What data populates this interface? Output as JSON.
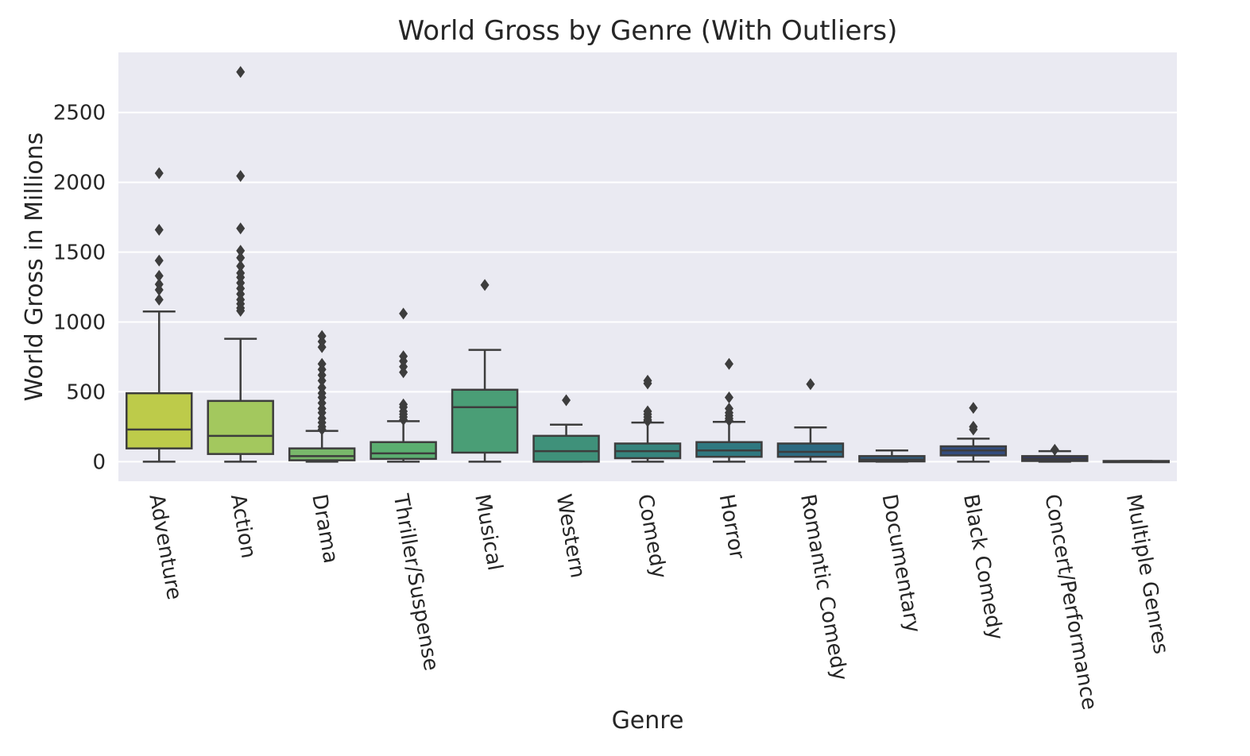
{
  "chart_data": {
    "type": "boxplot",
    "title": "World Gross by Genre (With Outliers)",
    "xlabel": "Genre",
    "ylabel": "World Gross in Millions",
    "ylim": [
      -140,
      2930
    ],
    "yticks": [
      0,
      500,
      1000,
      1500,
      2000,
      2500
    ],
    "grid": true,
    "legend": "none",
    "plot_background": "#eaeaf2",
    "box_edge_color": "#3d3d3d",
    "categories": [
      "Adventure",
      "Action",
      "Drama",
      "Thriller/Suspense",
      "Musical",
      "Western",
      "Comedy",
      "Horror",
      "Romantic Comedy",
      "Documentary",
      "Black Comedy",
      "Concert/Performance",
      "Multiple Genres"
    ],
    "boxes": [
      {
        "category": "Adventure",
        "color": "#bdcb4a",
        "whisker_low": 0,
        "q1": 95,
        "median": 230,
        "q3": 490,
        "whisker_high": 1075,
        "outliers": [
          1160,
          1230,
          1270,
          1330,
          1440,
          1660,
          2065
        ]
      },
      {
        "category": "Action",
        "color": "#a3c85e",
        "whisker_low": 0,
        "q1": 55,
        "median": 185,
        "q3": 435,
        "whisker_high": 880,
        "outliers": [
          1080,
          1100,
          1130,
          1160,
          1200,
          1240,
          1280,
          1320,
          1350,
          1400,
          1460,
          1510,
          1670,
          2045,
          2790
        ]
      },
      {
        "category": "Drama",
        "color": "#79b86b",
        "whisker_low": 0,
        "q1": 10,
        "median": 40,
        "q3": 95,
        "whisker_high": 220,
        "outliers": [
          230,
          250,
          280,
          310,
          350,
          380,
          420,
          460,
          490,
          530,
          580,
          620,
          660,
          700,
          820,
          860,
          900
        ]
      },
      {
        "category": "Thriller/Suspense",
        "color": "#5bae70",
        "whisker_low": 0,
        "q1": 20,
        "median": 60,
        "q3": 140,
        "whisker_high": 290,
        "outliers": [
          300,
          320,
          340,
          360,
          390,
          410,
          640,
          680,
          720,
          755,
          1060
        ]
      },
      {
        "category": "Musical",
        "color": "#4a9e76",
        "whisker_low": 0,
        "q1": 65,
        "median": 390,
        "q3": 515,
        "whisker_high": 800,
        "outliers": [
          1265
        ]
      },
      {
        "category": "Western",
        "color": "#3f917a",
        "whisker_low": 0,
        "q1": 0,
        "median": 75,
        "q3": 185,
        "whisker_high": 265,
        "outliers": [
          440
        ]
      },
      {
        "category": "Comedy",
        "color": "#36847d",
        "whisker_low": 0,
        "q1": 25,
        "median": 75,
        "q3": 130,
        "whisker_high": 280,
        "outliers": [
          290,
          300,
          320,
          340,
          360,
          560,
          580
        ]
      },
      {
        "category": "Horror",
        "color": "#2f7880",
        "whisker_low": 0,
        "q1": 35,
        "median": 80,
        "q3": 140,
        "whisker_high": 285,
        "outliers": [
          295,
          310,
          330,
          350,
          380,
          460,
          700
        ]
      },
      {
        "category": "Romantic Comedy",
        "color": "#2d6a81",
        "whisker_low": 0,
        "q1": 35,
        "median": 70,
        "q3": 130,
        "whisker_high": 245,
        "outliers": [
          555
        ]
      },
      {
        "category": "Documentary",
        "color": "#2f5b81",
        "whisker_low": 0,
        "q1": 2,
        "median": 15,
        "q3": 40,
        "whisker_high": 80,
        "outliers": []
      },
      {
        "category": "Black Comedy",
        "color": "#334c7e",
        "whisker_low": 0,
        "q1": 45,
        "median": 80,
        "q3": 110,
        "whisker_high": 165,
        "outliers": [
          230,
          250,
          385
        ]
      },
      {
        "category": "Concert/Performance",
        "color": "#343c70",
        "whisker_low": 0,
        "q1": 5,
        "median": 20,
        "q3": 40,
        "whisker_high": 75,
        "outliers": [
          85
        ]
      },
      {
        "category": "Multiple Genres",
        "color": "#33305f",
        "whisker_low": 0,
        "q1": 0,
        "median": 2,
        "q3": 5,
        "whisker_high": 5,
        "outliers": []
      }
    ]
  }
}
